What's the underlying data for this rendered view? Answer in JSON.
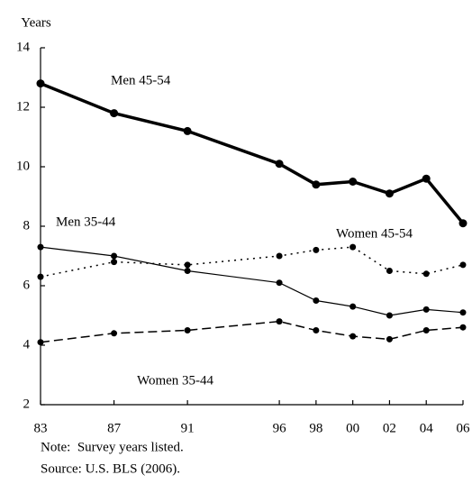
{
  "chart_data": {
    "type": "line",
    "y_label": "Years",
    "x": [
      1983,
      1987,
      1991,
      1996,
      1998,
      2000,
      2002,
      2004,
      2006
    ],
    "xlim": [
      1983,
      2006
    ],
    "xticks": [
      {
        "value": 1983,
        "label": "83"
      },
      {
        "value": 1987,
        "label": "87"
      },
      {
        "value": 1991,
        "label": "91"
      },
      {
        "value": 1996,
        "label": "96"
      },
      {
        "value": 1998,
        "label": "98"
      },
      {
        "value": 2000,
        "label": "00"
      },
      {
        "value": 2002,
        "label": "02"
      },
      {
        "value": 2004,
        "label": "04"
      },
      {
        "value": 2006,
        "label": "06"
      }
    ],
    "ylim": [
      2,
      14
    ],
    "yticks": [
      2,
      4,
      6,
      8,
      10,
      12,
      14
    ],
    "grid": false,
    "series": [
      {
        "name": "Men 45-54",
        "color": "#000000",
        "linestyle": "solid",
        "values": [
          12.8,
          11.8,
          11.2,
          10.1,
          9.4,
          9.5,
          9.1,
          9.6,
          8.1
        ]
      },
      {
        "name": "Men 35-44",
        "color": "#000000",
        "linestyle": "solid",
        "values": [
          7.3,
          7.0,
          6.5,
          6.1,
          5.5,
          5.3,
          5.0,
          5.2,
          5.1
        ]
      },
      {
        "name": "Women 45-54",
        "color": "#000000",
        "linestyle": "dotted",
        "values": [
          6.3,
          6.8,
          6.7,
          7.0,
          7.2,
          7.3,
          6.5,
          6.4,
          6.7
        ]
      },
      {
        "name": "Women 35-44",
        "color": "#000000",
        "linestyle": "dashed",
        "values": [
          4.1,
          4.4,
          4.5,
          4.8,
          4.5,
          4.3,
          4.2,
          4.5,
          4.6
        ]
      }
    ],
    "notes": [
      "Note:  Survey years listed.",
      "Source: U.S. BLS (2006)."
    ]
  }
}
